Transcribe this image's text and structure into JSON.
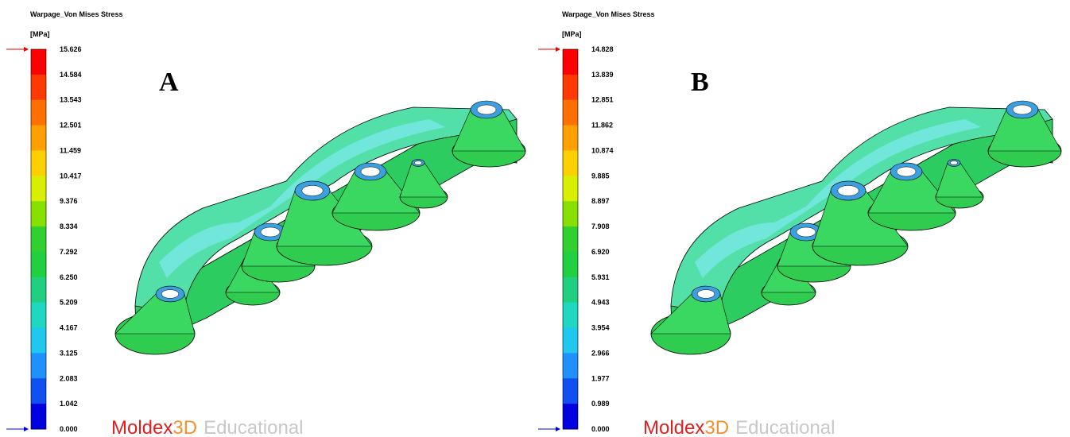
{
  "panels": [
    {
      "title": "Warpage_Von Mises Stress",
      "unit": "[MPa]",
      "label": "A",
      "scale": [
        "15.626",
        "14.584",
        "13.543",
        "12.501",
        "11.459",
        "10.417",
        "9.376",
        "8.334",
        "7.292",
        "6.250",
        "5.209",
        "4.167",
        "3.125",
        "2.083",
        "1.042",
        "0.000"
      ],
      "watermark": {
        "brand": "Moldex",
        "brand_suffix": "3D",
        "edition": "Educational"
      }
    },
    {
      "title": "Warpage_Von Mises Stress",
      "unit": "[MPa]",
      "label": "B",
      "scale": [
        "14.828",
        "13.839",
        "12.851",
        "11.862",
        "10.874",
        "9.885",
        "8.897",
        "7.908",
        "6.920",
        "5.931",
        "4.943",
        "3.954",
        "2.966",
        "1.977",
        "0.989",
        "0.000"
      ],
      "watermark": {
        "brand": "Moldex",
        "brand_suffix": "3D",
        "edition": "Educational"
      }
    }
  ]
}
